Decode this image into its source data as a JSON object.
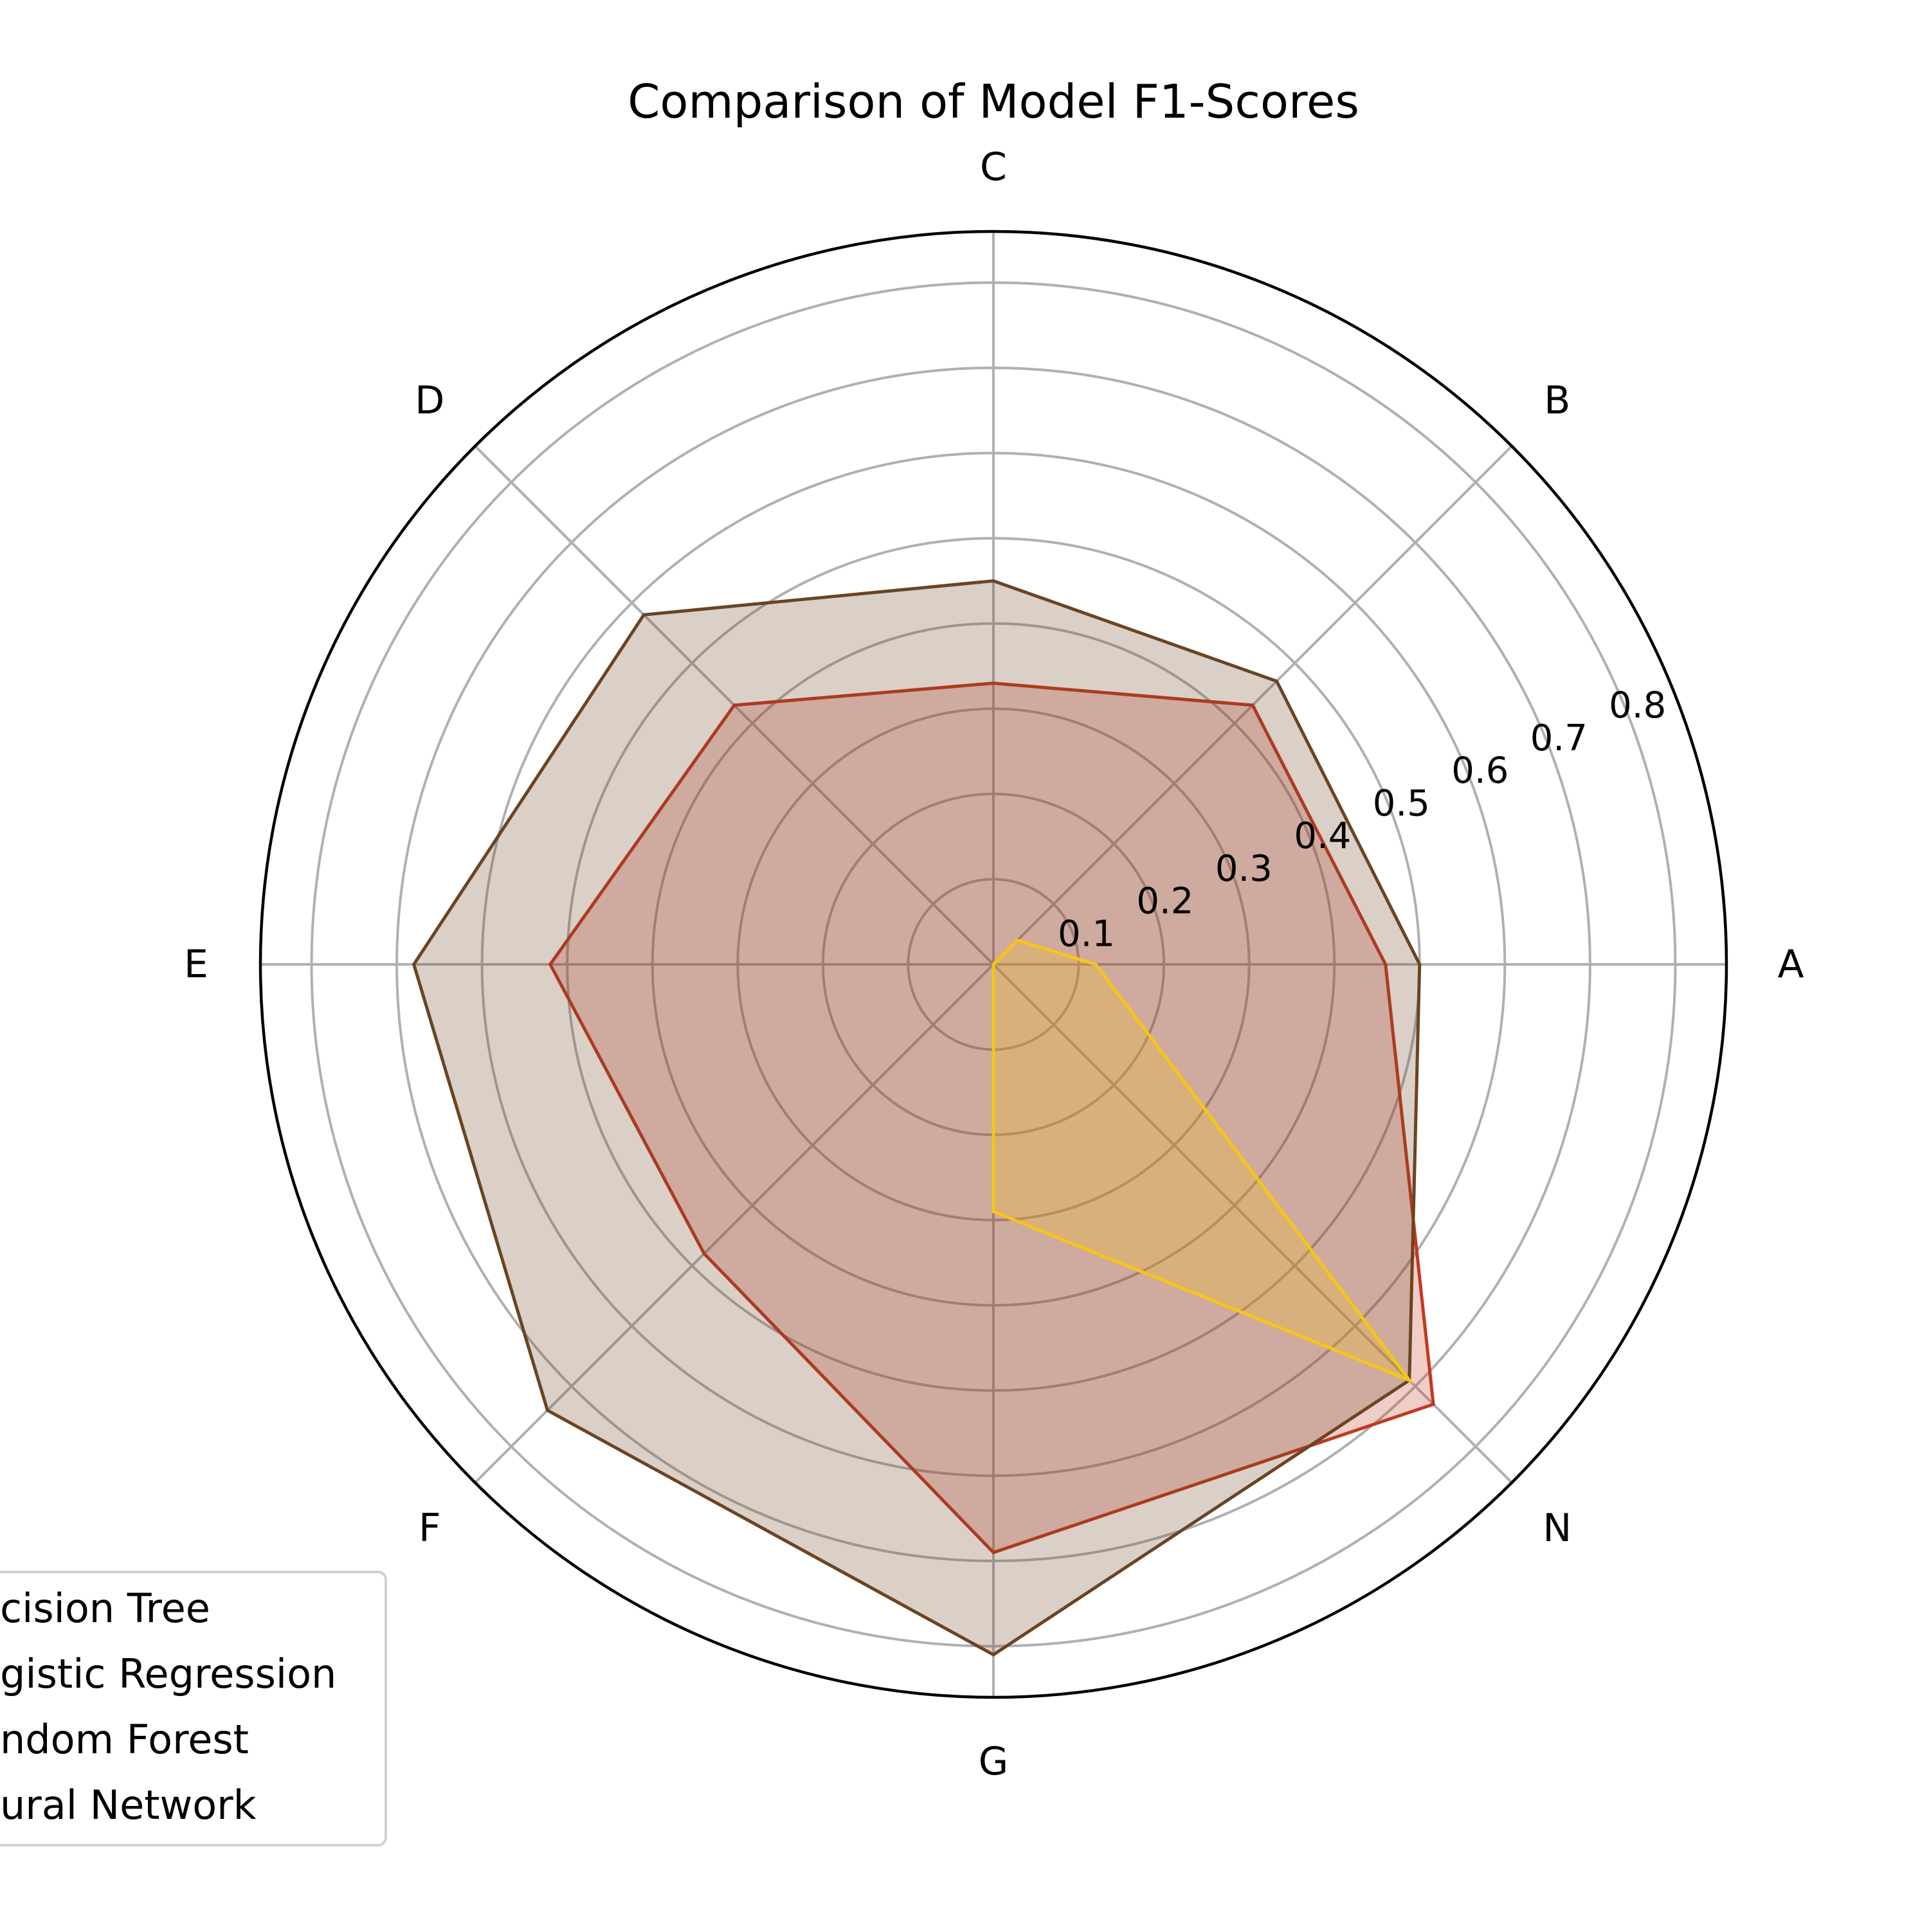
{
  "chart_data": {
    "type": "radar",
    "title": "Comparison of Model F1-Scores",
    "categories": [
      "A",
      "B",
      "C",
      "D",
      "E",
      "F",
      "G",
      "N"
    ],
    "radial_ticks": [
      "0.1",
      "0.2",
      "0.3",
      "0.4",
      "0.5",
      "0.6",
      "0.7",
      "0.8"
    ],
    "rlim": [
      0,
      0.86
    ],
    "grid": true,
    "legend_position": "bottom-left",
    "series": [
      {
        "name": "Decision Tree",
        "legend_label": "cision Tree",
        "color": "#c8b8a8",
        "values": [
          0.0,
          0.0,
          0.0,
          0.0,
          0.0,
          0.0,
          0.0,
          0.0
        ]
      },
      {
        "name": "Logistic Regression",
        "legend_label": "gistic Regression",
        "color": "#c2391f",
        "values": [
          0.46,
          0.43,
          0.33,
          0.43,
          0.52,
          0.48,
          0.69,
          0.73
        ]
      },
      {
        "name": "Random Forest",
        "legend_label": "ndom Forest",
        "color": "#6b4423",
        "values": [
          0.5,
          0.47,
          0.45,
          0.58,
          0.68,
          0.74,
          0.81,
          0.69
        ]
      },
      {
        "name": "Neural Network",
        "legend_label": "ural Network",
        "color": "#f5c518",
        "values": [
          0.12,
          0.04,
          0.0,
          0.0,
          0.0,
          0.0,
          0.29,
          0.69
        ]
      }
    ]
  }
}
